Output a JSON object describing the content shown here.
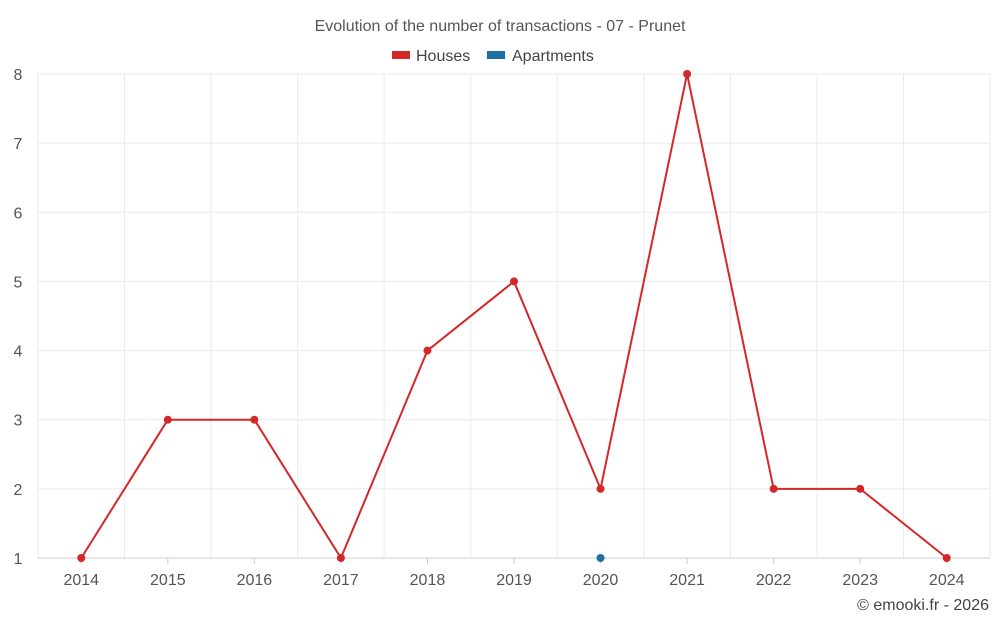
{
  "chart_data": {
    "type": "line",
    "title": "Evolution of the number of transactions - 07 - Prunet",
    "x": [
      "2014",
      "2015",
      "2016",
      "2017",
      "2018",
      "2019",
      "2020",
      "2021",
      "2022",
      "2023",
      "2024"
    ],
    "y_ticks": [
      "1",
      "2",
      "3",
      "4",
      "5",
      "6",
      "7",
      "8"
    ],
    "ylim": [
      1,
      8
    ],
    "grid": true,
    "legend_position": "top-center",
    "series": [
      {
        "name": "Houses",
        "color": "#d62728",
        "values": [
          1,
          3,
          3,
          1,
          4,
          5,
          2,
          8,
          2,
          2,
          1
        ]
      },
      {
        "name": "Apartments",
        "color": "#1f6fa3",
        "values": [
          null,
          null,
          null,
          null,
          null,
          null,
          1,
          null,
          null,
          null,
          null
        ]
      }
    ],
    "credit": "© emooki.fr - 2026"
  }
}
